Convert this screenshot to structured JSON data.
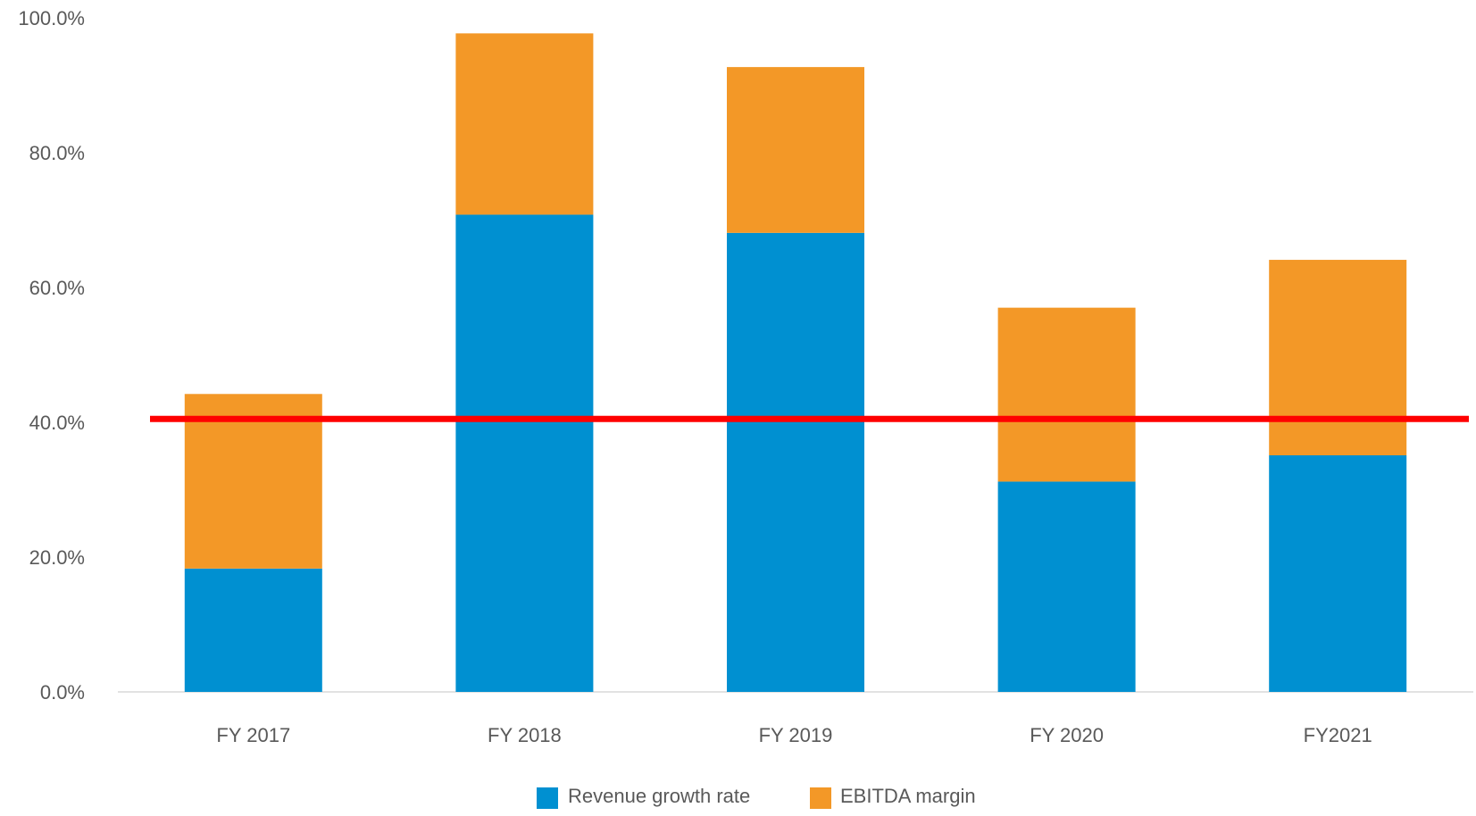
{
  "chart_data": {
    "type": "bar",
    "stacked": true,
    "categories": [
      "FY 2017",
      "FY 2018",
      "FY 2019",
      "FY 2020",
      "FY2021"
    ],
    "series": [
      {
        "name": "Revenue growth rate",
        "color": "#0090D1",
        "values": [
          18.3,
          70.8,
          68.1,
          31.2,
          35.1
        ]
      },
      {
        "name": "EBITDA margin",
        "color": "#F39827",
        "values": [
          25.9,
          26.9,
          24.6,
          25.8,
          29.0
        ]
      }
    ],
    "reference_line": {
      "value": 40.5,
      "color": "#FF0000"
    },
    "ylim": [
      0,
      100
    ],
    "y_ticks": [
      "0.0%",
      "20.0%",
      "40.0%",
      "60.0%",
      "80.0%",
      "100.0%"
    ],
    "y_tick_values": [
      0,
      20,
      40,
      60,
      80,
      100
    ],
    "grid": false,
    "legend_position": "bottom",
    "title": "",
    "xlabel": "",
    "ylabel": ""
  }
}
